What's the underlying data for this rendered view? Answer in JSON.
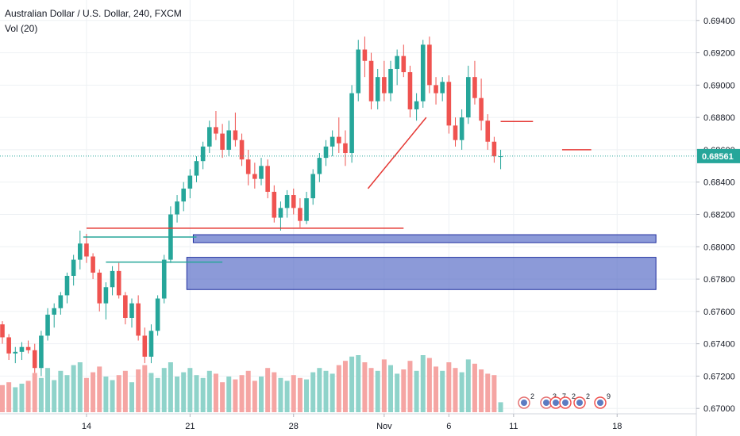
{
  "chart_data": {
    "type": "candlestick",
    "symbol_title": "Australian Dollar / U.S. Dollar, 240, FXCM",
    "volume_label": "Vol (20)",
    "price_axis": {
      "ylim": [
        0.669,
        0.695
      ],
      "ticks": [
        "0.67000",
        "0.67200",
        "0.67400",
        "0.67600",
        "0.67800",
        "0.68000",
        "0.68200",
        "0.68400",
        "0.68600",
        "0.68800",
        "0.69000",
        "0.69200",
        "0.69400"
      ]
    },
    "current_price": {
      "value": 0.68561,
      "label": "0.68561"
    },
    "x_axis": {
      "bar_range": [
        0,
        78
      ],
      "ticks": [
        {
          "label": "14",
          "bar": 13
        },
        {
          "label": "21",
          "bar": 29
        },
        {
          "label": "28",
          "bar": 45
        },
        {
          "label": "Nov",
          "bar": 59
        },
        {
          "label": "6",
          "bar": 69
        },
        {
          "label": "11",
          "bar": 79
        },
        {
          "label": "18",
          "bar": 95
        }
      ]
    },
    "colors": {
      "up": "#26a69a",
      "down": "#ef5350",
      "volume_up": "#8fd3ca",
      "volume_down": "#f5a5a3",
      "grid": "#eef1f4",
      "zone_fill": "#5b6fc8",
      "zone_border": "#1f2f9f",
      "price_line": "#26a69a",
      "resistance": "#e53935",
      "support_teal": "#26a69a",
      "axis_text": "#131722"
    },
    "candles": [
      [
        0.6752,
        0.6754,
        0.674,
        0.6744
      ],
      [
        0.6744,
        0.6746,
        0.673,
        0.6734
      ],
      [
        0.6734,
        0.6738,
        0.6728,
        0.6735
      ],
      [
        0.6735,
        0.6741,
        0.673,
        0.6738
      ],
      [
        0.6738,
        0.6742,
        0.6734,
        0.6736
      ],
      [
        0.6736,
        0.674,
        0.6722,
        0.6725
      ],
      [
        0.6725,
        0.6748,
        0.672,
        0.6745
      ],
      [
        0.6745,
        0.6762,
        0.6742,
        0.6758
      ],
      [
        0.6758,
        0.6765,
        0.675,
        0.6762
      ],
      [
        0.6762,
        0.6772,
        0.6758,
        0.677
      ],
      [
        0.677,
        0.6784,
        0.6765,
        0.6782
      ],
      [
        0.6782,
        0.6795,
        0.6776,
        0.6792
      ],
      [
        0.6792,
        0.681,
        0.6786,
        0.6802
      ],
      [
        0.6802,
        0.6808,
        0.679,
        0.6794
      ],
      [
        0.6794,
        0.6796,
        0.678,
        0.6784
      ],
      [
        0.6784,
        0.6786,
        0.676,
        0.6765
      ],
      [
        0.6765,
        0.6778,
        0.6755,
        0.6775
      ],
      [
        0.6775,
        0.6788,
        0.677,
        0.6785
      ],
      [
        0.6785,
        0.679,
        0.6768,
        0.677
      ],
      [
        0.677,
        0.6772,
        0.6752,
        0.6756
      ],
      [
        0.6756,
        0.6768,
        0.675,
        0.6765
      ],
      [
        0.6765,
        0.677,
        0.6742,
        0.6745
      ],
      [
        0.6745,
        0.675,
        0.6728,
        0.6732
      ],
      [
        0.6732,
        0.6752,
        0.6728,
        0.6748
      ],
      [
        0.6748,
        0.677,
        0.6745,
        0.6768
      ],
      [
        0.6768,
        0.6795,
        0.6765,
        0.6792
      ],
      [
        0.6792,
        0.6825,
        0.679,
        0.682
      ],
      [
        0.682,
        0.6832,
        0.6815,
        0.6828
      ],
      [
        0.6828,
        0.684,
        0.6822,
        0.6836
      ],
      [
        0.6836,
        0.6848,
        0.683,
        0.6844
      ],
      [
        0.6844,
        0.6856,
        0.684,
        0.6853
      ],
      [
        0.6853,
        0.6865,
        0.6848,
        0.6862
      ],
      [
        0.6862,
        0.6878,
        0.6858,
        0.6874
      ],
      [
        0.6874,
        0.6884,
        0.6866,
        0.687
      ],
      [
        0.687,
        0.6876,
        0.6855,
        0.686
      ],
      [
        0.686,
        0.6878,
        0.6856,
        0.6872
      ],
      [
        0.6872,
        0.6883,
        0.6862,
        0.6866
      ],
      [
        0.6866,
        0.687,
        0.685,
        0.6854
      ],
      [
        0.6854,
        0.686,
        0.6838,
        0.6845
      ],
      [
        0.6845,
        0.6852,
        0.6836,
        0.6842
      ],
      [
        0.6842,
        0.6855,
        0.6838,
        0.685
      ],
      [
        0.685,
        0.6854,
        0.683,
        0.6834
      ],
      [
        0.6834,
        0.6838,
        0.6815,
        0.6818
      ],
      [
        0.6818,
        0.6828,
        0.681,
        0.6824
      ],
      [
        0.6824,
        0.6835,
        0.6818,
        0.6832
      ],
      [
        0.6832,
        0.6836,
        0.682,
        0.6824
      ],
      [
        0.6824,
        0.683,
        0.6812,
        0.6816
      ],
      [
        0.6816,
        0.6834,
        0.6814,
        0.683
      ],
      [
        0.683,
        0.6848,
        0.6826,
        0.6845
      ],
      [
        0.6845,
        0.6858,
        0.684,
        0.6855
      ],
      [
        0.6855,
        0.6866,
        0.685,
        0.6862
      ],
      [
        0.6862,
        0.6872,
        0.6856,
        0.6868
      ],
      [
        0.6868,
        0.688,
        0.6858,
        0.6864
      ],
      [
        0.6864,
        0.6872,
        0.685,
        0.6858
      ],
      [
        0.6858,
        0.69,
        0.6852,
        0.6895
      ],
      [
        0.6895,
        0.6928,
        0.689,
        0.6922
      ],
      [
        0.6922,
        0.693,
        0.6905,
        0.6915
      ],
      [
        0.6915,
        0.692,
        0.6885,
        0.689
      ],
      [
        0.689,
        0.691,
        0.6885,
        0.6905
      ],
      [
        0.6905,
        0.6915,
        0.689,
        0.6895
      ],
      [
        0.6895,
        0.6915,
        0.689,
        0.691
      ],
      [
        0.691,
        0.6922,
        0.69,
        0.6918
      ],
      [
        0.6918,
        0.6925,
        0.6905,
        0.6908
      ],
      [
        0.6908,
        0.6912,
        0.688,
        0.6885
      ],
      [
        0.6885,
        0.6895,
        0.6878,
        0.689
      ],
      [
        0.689,
        0.6928,
        0.6886,
        0.6925
      ],
      [
        0.6925,
        0.693,
        0.6895,
        0.69
      ],
      [
        0.69,
        0.6905,
        0.6888,
        0.6895
      ],
      [
        0.6895,
        0.6905,
        0.689,
        0.6902
      ],
      [
        0.6902,
        0.6906,
        0.687,
        0.6875
      ],
      [
        0.6875,
        0.688,
        0.6862,
        0.6866
      ],
      [
        0.6866,
        0.6885,
        0.686,
        0.688
      ],
      [
        0.688,
        0.6912,
        0.6876,
        0.6905
      ],
      [
        0.6905,
        0.6915,
        0.6888,
        0.6892
      ],
      [
        0.6892,
        0.6904,
        0.6872,
        0.6878
      ],
      [
        0.6878,
        0.6882,
        0.686,
        0.6865
      ],
      [
        0.6865,
        0.6868,
        0.6852,
        0.6856
      ],
      [
        0.6856,
        0.686,
        0.6848,
        0.6856
      ]
    ],
    "volumes": [
      0.38,
      0.42,
      0.35,
      0.4,
      0.44,
      0.55,
      0.48,
      0.62,
      0.45,
      0.58,
      0.52,
      0.66,
      0.7,
      0.48,
      0.56,
      0.64,
      0.5,
      0.45,
      0.52,
      0.58,
      0.42,
      0.6,
      0.66,
      0.55,
      0.48,
      0.62,
      0.7,
      0.5,
      0.56,
      0.62,
      0.52,
      0.48,
      0.58,
      0.54,
      0.42,
      0.5,
      0.46,
      0.52,
      0.58,
      0.44,
      0.5,
      0.62,
      0.56,
      0.48,
      0.44,
      0.52,
      0.48,
      0.46,
      0.56,
      0.62,
      0.58,
      0.54,
      0.66,
      0.72,
      0.78,
      0.8,
      0.7,
      0.62,
      0.58,
      0.74,
      0.66,
      0.54,
      0.6,
      0.72,
      0.58,
      0.8,
      0.76,
      0.64,
      0.58,
      0.7,
      0.62,
      0.56,
      0.74,
      0.68,
      0.6,
      0.54,
      0.52,
      0.14
    ],
    "zones": [
      {
        "bar_start": 29.5,
        "bar_end": 101,
        "price_top": 0.68055,
        "price_bottom": 0.68045
      },
      {
        "bar_start": 28.5,
        "bar_end": 101,
        "price_top": 0.67915,
        "price_bottom": 0.67755
      }
    ],
    "lines": [
      {
        "kind": "horizontal",
        "color": "resistance",
        "bar_start": 13,
        "bar_end": 62,
        "price": 0.68115
      },
      {
        "kind": "horizontal",
        "color": "support_teal",
        "bar_start": 12.5,
        "bar_end": 30,
        "price": 0.6806
      },
      {
        "kind": "horizontal",
        "color": "support_teal",
        "bar_start": 16,
        "bar_end": 34,
        "price": 0.67905
      },
      {
        "kind": "trend",
        "color": "resistance",
        "bar_start": 56.5,
        "price_start": 0.6836,
        "bar_end": 65.5,
        "price_end": 0.688
      },
      {
        "kind": "horizontal",
        "color": "resistance",
        "bar_start": 77,
        "bar_end": 82,
        "price": 0.68775
      },
      {
        "kind": "horizontal",
        "color": "resistance",
        "bar_start": 86.5,
        "bar_end": 91,
        "price": 0.686
      }
    ],
    "event_markers": [
      "2",
      "3",
      "7",
      "2",
      "2",
      "9"
    ]
  }
}
